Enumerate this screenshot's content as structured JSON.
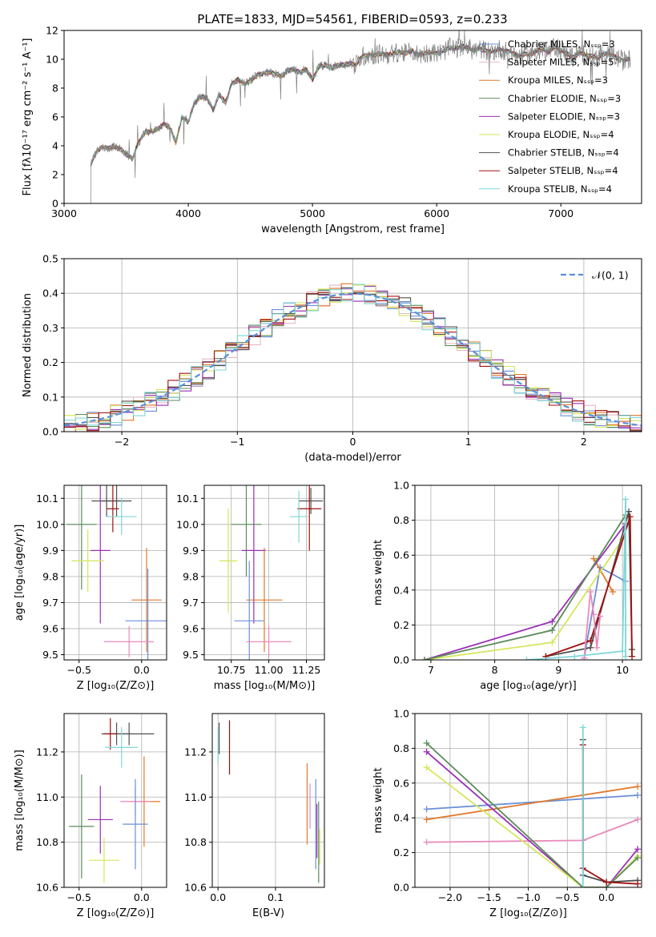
{
  "figure_title": "PLATE=1833, MJD=54561, FIBERID=0593, z=0.233",
  "chart_data": [
    {
      "id": "spectrum",
      "type": "line",
      "title": "PLATE=1833, MJD=54561, FIBERID=0593, z=0.233",
      "xlabel": "wavelength [Angstrom, rest frame]",
      "ylabel": "Flux [fλ10⁻¹⁷ erg cm⁻² s⁻¹ A⁻¹]",
      "xlim": [
        3000,
        7650
      ],
      "ylim": [
        0,
        12
      ],
      "xticks": [
        3000,
        4000,
        5000,
        6000,
        7000
      ],
      "yticks": [
        0,
        2,
        4,
        6,
        8,
        10,
        12
      ],
      "grid": false,
      "legend_position": "upper-right",
      "observed_color": "#808080",
      "observed": {
        "x": [
          3215,
          3250,
          3300,
          3350,
          3400,
          3450,
          3500,
          3550,
          3600,
          3650,
          3700,
          3750,
          3800,
          3850,
          3900,
          3950,
          4000,
          4050,
          4100,
          4150,
          4200,
          4250,
          4300,
          4350,
          4400,
          4450,
          4500,
          4550,
          4600,
          4650,
          4700,
          4750,
          4800,
          4850,
          4900,
          4950,
          5000,
          5050,
          5100,
          5150,
          5200,
          5250,
          5300,
          5350,
          5400,
          5450,
          5500,
          5550,
          5600,
          5650,
          5700,
          5750,
          5800,
          5850,
          5900,
          5950,
          6000,
          6050,
          6100,
          6150,
          6200,
          6250,
          6300,
          6350,
          6400,
          6450,
          6500,
          6550,
          6600,
          6650,
          6700,
          6750,
          6800,
          6850,
          6900,
          6950,
          7000,
          7050,
          7100,
          7150,
          7200,
          7250,
          7300,
          7350,
          7400,
          7450,
          7500,
          7550
        ],
        "y": [
          2.7,
          3.4,
          3.9,
          3.8,
          3.95,
          3.8,
          3.4,
          3.1,
          4.2,
          4.9,
          5.0,
          5.1,
          5.5,
          5.3,
          4.2,
          6.1,
          5.6,
          7.0,
          7.4,
          7.3,
          6.5,
          7.6,
          7.0,
          8.3,
          8.6,
          8.3,
          8.5,
          8.9,
          9.0,
          9.1,
          9.0,
          8.8,
          9.2,
          9.3,
          9.1,
          9.3,
          8.6,
          9.5,
          9.6,
          9.4,
          9.6,
          9.6,
          9.7,
          9.6,
          10.2,
          10.3,
          10.3,
          10.4,
          10.3,
          10.4,
          10.5,
          10.4,
          10.6,
          10.3,
          10.4,
          10.5,
          10.4,
          10.5,
          10.8,
          10.7,
          10.9,
          10.8,
          10.6,
          10.7,
          10.6,
          10.5,
          10.7,
          10.6,
          10.5,
          10.2,
          10.4,
          10.3,
          10.6,
          10.7,
          10.5,
          10.9,
          10.6,
          10.4,
          10.1,
          10.5,
          10.3,
          10.2,
          10.1,
          10.4,
          10.3,
          10.1,
          9.9,
          10.0
        ]
      },
      "series": [
        {
          "name": "Chabrier MILES, N_SSP=3",
          "color": "#6a8fd8"
        },
        {
          "name": "Salpeter MILES, N_SSP=5",
          "color": "#e7b7c8"
        },
        {
          "name": "Kroupa MILES, N_SSP=3",
          "color": "#e0782a"
        },
        {
          "name": "Chabrier ELODIE, N_SSP=3",
          "color": "#5b8c5a"
        },
        {
          "name": "Salpeter ELODIE, N_SSP=3",
          "color": "#9b2fb5"
        },
        {
          "name": "Kroupa ELODIE, N_SSP=4",
          "color": "#d6e65a"
        },
        {
          "name": "Chabrier STELIB, N_SSP=4",
          "color": "#505050"
        },
        {
          "name": "Salpeter STELIB, N_SSP=4",
          "color": "#a01010"
        },
        {
          "name": "Kroupa STELIB, N_SSP=4",
          "color": "#7fd6d6"
        }
      ]
    },
    {
      "id": "residuals",
      "type": "line",
      "xlabel": "(data-model)/error",
      "ylabel": "Normed distribution",
      "xlim": [
        -2.5,
        2.5
      ],
      "ylim": [
        0,
        0.5
      ],
      "xticks": [
        -2,
        -1,
        0,
        1,
        2
      ],
      "yticks": [
        0.0,
        0.1,
        0.2,
        0.3,
        0.4,
        0.5
      ],
      "grid": true,
      "legend_position": "upper-right",
      "reference": {
        "name": "𝒩(0, 1)",
        "color": "#5b8fd8",
        "mean": 0,
        "sigma": 1
      }
    },
    {
      "id": "z-age",
      "type": "scatter",
      "xlabel": "Z [log₁₀(Z/Z⊙)]",
      "ylabel": "age  [log₁₀(age/yr)]",
      "xlim": [
        -0.62,
        0.2
      ],
      "ylim": [
        9.48,
        10.15
      ],
      "xticks": [
        -0.5,
        0.0
      ],
      "yticks": [
        9.5,
        9.6,
        9.7,
        9.8,
        9.9,
        10.0,
        10.1
      ],
      "grid": true,
      "points": [
        {
          "x": -0.28,
          "y": 10.09,
          "xerr": 0.12,
          "yerr": 0.06,
          "color": "#505050"
        },
        {
          "x": -0.2,
          "y": 10.09,
          "xerr": 0.12,
          "yerr": 0.06,
          "color": "#505050"
        },
        {
          "x": -0.23,
          "y": 10.06,
          "xerr": 0.05,
          "yerr": 0.09,
          "color": "#a01010"
        },
        {
          "x": -0.16,
          "y": 10.03,
          "xerr": 0.12,
          "yerr": 0.07,
          "color": "#7fd6d6"
        },
        {
          "x": -0.48,
          "y": 10.0,
          "xerr": 0.12,
          "yerr": 0.25,
          "color": "#5b8c5a"
        },
        {
          "x": -0.33,
          "y": 9.9,
          "xerr": 0.08,
          "yerr": 0.28,
          "color": "#9b2fb5"
        },
        {
          "x": -0.43,
          "y": 9.86,
          "xerr": 0.13,
          "yerr": 0.12,
          "color": "#d6e65a"
        },
        {
          "x": 0.04,
          "y": 9.71,
          "xerr": 0.12,
          "yerr": 0.2,
          "color": "#e0782a"
        },
        {
          "x": 0.05,
          "y": 9.63,
          "xerr": 0.18,
          "yerr": 0.2,
          "color": "#6a8fd8"
        },
        {
          "x": -0.1,
          "y": 9.55,
          "xerr": 0.2,
          "yerr": 0.06,
          "color": "#e88abb"
        }
      ]
    },
    {
      "id": "mass-age",
      "type": "scatter",
      "xlabel": "mass [log₁₀(M/M⊙)]",
      "ylabel": "",
      "xlim": [
        10.57,
        11.37
      ],
      "ylim": [
        9.48,
        10.15
      ],
      "xticks": [
        10.75,
        11.0,
        11.25
      ],
      "yticks": [
        9.5,
        9.6,
        9.7,
        9.8,
        9.9,
        10.0,
        10.1
      ],
      "grid": true,
      "points": [
        {
          "x": 11.28,
          "y": 10.09,
          "xerr": 0.08,
          "yerr": 0.05,
          "color": "#505050"
        },
        {
          "x": 11.27,
          "y": 10.06,
          "xerr": 0.08,
          "yerr": 0.16,
          "color": "#a01010"
        },
        {
          "x": 11.2,
          "y": 10.03,
          "xerr": 0.06,
          "yerr": 0.1,
          "color": "#7fd6d6"
        },
        {
          "x": 10.85,
          "y": 10.0,
          "xerr": 0.1,
          "yerr": 0.2,
          "color": "#5b8c5a"
        },
        {
          "x": 10.9,
          "y": 9.9,
          "xerr": 0.08,
          "yerr": 0.28,
          "color": "#9b2fb5"
        },
        {
          "x": 10.73,
          "y": 9.86,
          "xerr": 0.06,
          "yerr": 0.2,
          "color": "#d6e65a"
        },
        {
          "x": 10.97,
          "y": 9.71,
          "xerr": 0.12,
          "yerr": 0.2,
          "color": "#e0782a"
        },
        {
          "x": 10.87,
          "y": 9.63,
          "xerr": 0.1,
          "yerr": 0.23,
          "color": "#6a8fd8"
        },
        {
          "x": 11.0,
          "y": 9.55,
          "xerr": 0.15,
          "yerr": 0.06,
          "color": "#e88abb"
        }
      ]
    },
    {
      "id": "age-weight",
      "type": "line",
      "xlabel": "age  [log₁₀(age/yr)]",
      "ylabel": "mass weight",
      "xlim": [
        6.75,
        10.3
      ],
      "ylim": [
        0,
        1
      ],
      "xticks": [
        7,
        8,
        9,
        10
      ],
      "yticks": [
        0.0,
        0.2,
        0.4,
        0.6,
        0.8,
        1.0
      ],
      "grid": true,
      "series": [
        {
          "color": "#6a8fd8",
          "x": [
            9.4,
            9.65,
            10.05
          ],
          "y": [
            0.01,
            0.53,
            0.45
          ]
        },
        {
          "color": "#e0782a",
          "x": [
            9.55,
            9.85
          ],
          "y": [
            0.58,
            0.39
          ]
        },
        {
          "color": "#9b2fb5",
          "x": [
            6.9,
            8.9,
            10.05
          ],
          "y": [
            0.0,
            0.22,
            0.78
          ]
        },
        {
          "color": "#d6e65a",
          "x": [
            6.9,
            8.9,
            10.0
          ],
          "y": [
            0.0,
            0.1,
            0.69
          ]
        },
        {
          "color": "#5b8c5a",
          "x": [
            6.9,
            8.9,
            10.05
          ],
          "y": [
            0.0,
            0.17,
            0.83
          ]
        },
        {
          "color": "#505050",
          "x": [
            8.8,
            9.5,
            10.1,
            10.15
          ],
          "y": [
            0.02,
            0.07,
            0.85,
            0.06
          ]
        },
        {
          "color": "#a01010",
          "x": [
            8.8,
            9.5,
            10.12,
            10.15
          ],
          "y": [
            0.02,
            0.11,
            0.82,
            0.02
          ]
        },
        {
          "color": "#e88abb",
          "x": [
            9.4,
            9.5,
            9.55,
            9.6,
            9.65
          ],
          "y": [
            0.01,
            0.39,
            0.26,
            0.07,
            0.25
          ]
        },
        {
          "color": "#7fd6d6",
          "x": [
            8.5,
            9.25,
            10.0,
            10.05,
            10.05
          ],
          "y": [
            0.0,
            0.02,
            0.05,
            0.92,
            0.02
          ]
        }
      ]
    },
    {
      "id": "z-mass",
      "type": "scatter",
      "xlabel": "Z [log₁₀(Z/Z⊙)]",
      "ylabel": "mass [log₁₀(M/M⊙)]",
      "xlim": [
        -0.62,
        0.2
      ],
      "ylim": [
        10.6,
        11.37
      ],
      "xticks": [
        -0.5,
        0.0
      ],
      "yticks": [
        10.6,
        10.8,
        11.0,
        11.2
      ],
      "grid": true,
      "points": [
        {
          "x": -0.1,
          "y": 11.28,
          "xerr": 0.2,
          "yerr": 0.05,
          "color": "#505050"
        },
        {
          "x": -0.2,
          "y": 11.28,
          "xerr": 0.12,
          "yerr": 0.05,
          "color": "#505050"
        },
        {
          "x": -0.25,
          "y": 11.28,
          "xerr": 0.05,
          "yerr": 0.07,
          "color": "#a01010"
        },
        {
          "x": -0.16,
          "y": 11.22,
          "xerr": 0.13,
          "yerr": 0.09,
          "color": "#7fd6d6"
        },
        {
          "x": 0.02,
          "y": 10.98,
          "xerr": 0.13,
          "yerr": 0.2,
          "color": "#e0782a"
        },
        {
          "x": -0.05,
          "y": 10.98,
          "xerr": 0.12,
          "yerr": 0.06,
          "color": "#e88abb"
        },
        {
          "x": -0.33,
          "y": 10.9,
          "xerr": 0.1,
          "yerr": 0.15,
          "color": "#9b2fb5"
        },
        {
          "x": -0.05,
          "y": 10.88,
          "xerr": 0.1,
          "yerr": 0.2,
          "color": "#6a8fd8"
        },
        {
          "x": -0.48,
          "y": 10.87,
          "xerr": 0.1,
          "yerr": 0.23,
          "color": "#5b8c5a"
        },
        {
          "x": -0.3,
          "y": 10.72,
          "xerr": 0.12,
          "yerr": 0.1,
          "color": "#d6e65a"
        }
      ]
    },
    {
      "id": "ebv-mass",
      "type": "scatter",
      "xlabel": "E(B-V)",
      "ylabel": "",
      "xlim": [
        -0.01,
        0.185
      ],
      "ylim": [
        10.6,
        11.37
      ],
      "xticks": [
        0.0,
        0.1
      ],
      "yticks": [
        10.6,
        10.8,
        11.0,
        11.2
      ],
      "grid": true,
      "points": [
        {
          "x": 0.0,
          "y": 11.23,
          "xerr": 0,
          "yerr": 0.08,
          "color": "#7fd6d6"
        },
        {
          "x": 0.002,
          "y": 11.26,
          "xerr": 0,
          "yerr": 0.07,
          "color": "#505050"
        },
        {
          "x": 0.02,
          "y": 11.22,
          "xerr": 0,
          "yerr": 0.12,
          "color": "#a01010"
        },
        {
          "x": 0.155,
          "y": 10.97,
          "xerr": 0,
          "yerr": 0.18,
          "color": "#e0782a"
        },
        {
          "x": 0.16,
          "y": 10.96,
          "xerr": 0,
          "yerr": 0.1,
          "color": "#e88abb"
        },
        {
          "x": 0.17,
          "y": 10.88,
          "xerr": 0,
          "yerr": 0.2,
          "color": "#6a8fd8"
        },
        {
          "x": 0.172,
          "y": 10.85,
          "xerr": 0,
          "yerr": 0.12,
          "color": "#9b2fb5"
        },
        {
          "x": 0.175,
          "y": 10.8,
          "xerr": 0,
          "yerr": 0.18,
          "color": "#5b8c5a"
        },
        {
          "x": 0.177,
          "y": 10.78,
          "xerr": 0,
          "yerr": 0.08,
          "color": "#d6e65a"
        }
      ]
    },
    {
      "id": "z-weight",
      "type": "line",
      "xlabel": "Z [log₁₀(Z/Z⊙)]",
      "ylabel": "mass weight",
      "xlim": [
        -2.45,
        0.45
      ],
      "ylim": [
        0,
        1
      ],
      "xticks": [
        -2.0,
        -1.5,
        -1.0,
        -0.5,
        0.0
      ],
      "yticks": [
        0.0,
        0.2,
        0.4,
        0.6,
        0.8,
        1.0
      ],
      "grid": true,
      "series": [
        {
          "color": "#6a8fd8",
          "x": [
            -2.3,
            0.4
          ],
          "y": [
            0.45,
            0.53
          ]
        },
        {
          "color": "#e0782a",
          "x": [
            -2.3,
            0.4
          ],
          "y": [
            0.39,
            0.58
          ]
        },
        {
          "color": "#e88abb",
          "x": [
            -2.3,
            -0.3,
            0.4
          ],
          "y": [
            0.26,
            0.27,
            0.39
          ]
        },
        {
          "color": "#9b2fb5",
          "x": [
            -2.3,
            -0.3,
            0.0,
            0.4
          ],
          "y": [
            0.78,
            0.0,
            0.0,
            0.22
          ]
        },
        {
          "color": "#d6e65a",
          "x": [
            -2.3,
            -0.3,
            0.0,
            0.4
          ],
          "y": [
            0.69,
            0.0,
            0.0,
            0.18
          ]
        },
        {
          "color": "#5b8c5a",
          "x": [
            -2.3,
            -0.3,
            0.0,
            0.4
          ],
          "y": [
            0.83,
            0.0,
            0.0,
            0.17
          ]
        },
        {
          "color": "#505050",
          "x": [
            -0.3,
            -0.3,
            0.0,
            0.4
          ],
          "y": [
            0.85,
            0.07,
            0.03,
            0.04
          ]
        },
        {
          "color": "#a01010",
          "x": [
            -0.3,
            -0.3,
            0.0,
            0.4
          ],
          "y": [
            0.82,
            0.11,
            0.03,
            0.02
          ]
        },
        {
          "color": "#7fd6d6",
          "x": [
            -0.3,
            -0.3
          ],
          "y": [
            0.92,
            0.0
          ]
        }
      ]
    }
  ]
}
